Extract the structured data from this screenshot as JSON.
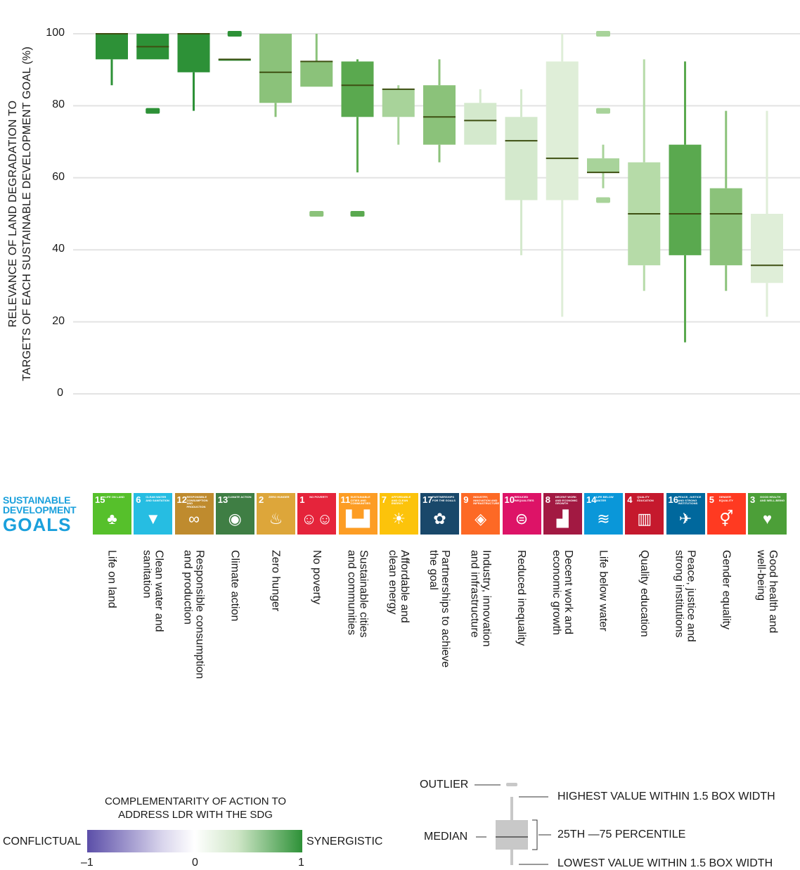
{
  "chart_data": {
    "type": "box",
    "ylabel_line1": "RELEVANCE OF LAND DEGRADATION TO",
    "ylabel_line2": "TARGETS OF EACH SUSTAINABLE DEVELOPMENT GOAL (%)",
    "ylim": [
      0,
      100
    ],
    "yticks": [
      0,
      20,
      40,
      60,
      80,
      100
    ],
    "grid": true,
    "categories": [
      {
        "name": "Life on land",
        "goal": 15,
        "color": "#2d9137",
        "q1": 92.9,
        "median": 100,
        "q3": 100,
        "low": 85.7,
        "high": 100,
        "outliers": []
      },
      {
        "name": "Clean water and sanitation",
        "goal": 6,
        "color": "#2d9137",
        "q1": 92.9,
        "median": 96.4,
        "q3": 100,
        "low": 92.9,
        "high": 100,
        "outliers": [
          78.6
        ]
      },
      {
        "name": "Responsible consumption and production",
        "goal": 12,
        "color": "#2d9137",
        "q1": 89.3,
        "median": 100,
        "q3": 100,
        "low": 78.6,
        "high": 100,
        "outliers": []
      },
      {
        "name": "Climate action",
        "goal": 13,
        "color": "#2d9137",
        "q1": 92.9,
        "median": 92.9,
        "q3": 92.9,
        "low": 92.9,
        "high": 92.9,
        "outliers": [
          100
        ]
      },
      {
        "name": "Zero hunger",
        "goal": 2,
        "color": "#8bc27a",
        "q1": 80.8,
        "median": 89.3,
        "q3": 100,
        "low": 76.9,
        "high": 100,
        "outliers": []
      },
      {
        "name": "No poverty",
        "goal": 1,
        "color": "#8bc27a",
        "q1": 85.3,
        "median": 92.3,
        "q3": 92.3,
        "low": 85.3,
        "high": 100,
        "outliers": [
          50
        ]
      },
      {
        "name": "Sustainable cities and communities",
        "goal": 11,
        "color": "#5aa94f",
        "q1": 76.9,
        "median": 85.7,
        "q3": 92.3,
        "low": 61.5,
        "high": 92.9,
        "outliers": [
          50
        ]
      },
      {
        "name": "Affordable and clean energy",
        "goal": 7,
        "color": "#a8d39a",
        "q1": 76.9,
        "median": 84.6,
        "q3": 84.6,
        "low": 69.2,
        "high": 85.7,
        "outliers": []
      },
      {
        "name": "Partnerships to achieve the goal",
        "goal": 17,
        "color": "#8bc27a",
        "q1": 69.2,
        "median": 76.9,
        "q3": 85.7,
        "low": 64.3,
        "high": 92.9,
        "outliers": []
      },
      {
        "name": "Industry, innovation and infrastructure",
        "goal": 9,
        "color": "#d4e9cd",
        "q1": 69.2,
        "median": 75.9,
        "q3": 80.8,
        "low": 69.2,
        "high": 84.6,
        "outliers": []
      },
      {
        "name": "Reduced inequality",
        "goal": 10,
        "color": "#d4e9cd",
        "q1": 53.8,
        "median": 70.3,
        "q3": 76.9,
        "low": 38.5,
        "high": 84.6,
        "outliers": []
      },
      {
        "name": "Decent work and economic growth",
        "goal": 8,
        "color": "#dfeed8",
        "q1": 53.8,
        "median": 65.4,
        "q3": 92.3,
        "low": 21.4,
        "high": 100,
        "outliers": []
      },
      {
        "name": "Life below water",
        "goal": 14,
        "color": "#a8d39a",
        "q1": 61.5,
        "median": 61.5,
        "q3": 65.4,
        "low": 57.1,
        "high": 69.2,
        "outliers": [
          53.8,
          78.6,
          100
        ]
      },
      {
        "name": "Quality education",
        "goal": 4,
        "color": "#b6dba8",
        "q1": 35.7,
        "median": 50,
        "q3": 64.3,
        "low": 28.6,
        "high": 92.9,
        "outliers": []
      },
      {
        "name": "Peace, justice and strong institutions",
        "goal": 16,
        "color": "#5aa94f",
        "q1": 38.5,
        "median": 50,
        "q3": 69.2,
        "low": 14.3,
        "high": 92.3,
        "outliers": []
      },
      {
        "name": "Gender equality",
        "goal": 5,
        "color": "#8bc27a",
        "q1": 35.7,
        "median": 50,
        "q3": 57.1,
        "low": 28.6,
        "high": 78.6,
        "outliers": []
      },
      {
        "name": "Good health and well-being",
        "goal": 3,
        "color": "#dfeed8",
        "q1": 30.8,
        "median": 35.7,
        "q3": 50,
        "low": 21.4,
        "high": 78.6,
        "outliers": []
      }
    ]
  },
  "sdg_logo": {
    "line1": "SUSTAINABLE",
    "line2": "DEVELOPMENT",
    "line3": "GOALS"
  },
  "tiles": [
    {
      "num": "15",
      "title": "Life on land",
      "glyph": "♣",
      "color": "#56c02b"
    },
    {
      "num": "6",
      "title": "Clean water and sanitation",
      "glyph": "▼",
      "color": "#26bde2"
    },
    {
      "num": "12",
      "title": "Responsible consumption and production",
      "glyph": "∞",
      "color": "#bf8b2e"
    },
    {
      "num": "13",
      "title": "Climate action",
      "glyph": "◉",
      "color": "#3f7e44"
    },
    {
      "num": "2",
      "title": "Zero hunger",
      "glyph": "♨",
      "color": "#dda63a"
    },
    {
      "num": "1",
      "title": "No poverty",
      "glyph": "☺☺☺",
      "color": "#e5243b"
    },
    {
      "num": "11",
      "title": "Sustainable cities and communities",
      "glyph": "▙▟",
      "color": "#fd9d24"
    },
    {
      "num": "7",
      "title": "Affordable and clean energy",
      "glyph": "☀",
      "color": "#fcc30b"
    },
    {
      "num": "17",
      "title": "Partnerships for the goals",
      "glyph": "✿",
      "color": "#19486a"
    },
    {
      "num": "9",
      "title": "Industry, innovation and infrastructure",
      "glyph": "◈",
      "color": "#fd6925"
    },
    {
      "num": "10",
      "title": "Reduced inequalities",
      "glyph": "⊜",
      "color": "#dd1367"
    },
    {
      "num": "8",
      "title": "Decent work and economic growth",
      "glyph": "▟",
      "color": "#a21942"
    },
    {
      "num": "14",
      "title": "Life below water",
      "glyph": "≋",
      "color": "#0a97d9"
    },
    {
      "num": "4",
      "title": "Quality education",
      "glyph": "▥",
      "color": "#c5192d"
    },
    {
      "num": "16",
      "title": "Peace, justice and strong institutions",
      "glyph": "✈",
      "color": "#00689d"
    },
    {
      "num": "5",
      "title": "Gender equality",
      "glyph": "⚥",
      "color": "#ff3a21"
    },
    {
      "num": "3",
      "title": "Good health and well-being",
      "glyph": "♥",
      "color": "#4c9f38"
    }
  ],
  "goal_labels": [
    "Life on land",
    "Clean water and\nsanitation",
    "Responsible consumption\nand production",
    "Climate action",
    "Zero hunger",
    "No poverty",
    "Sustainable cities\nand communities",
    "Affordable and\nclean energy",
    "Partnerships to achieve\nthe goal",
    "Industry, innovation\nand infrastructure",
    "Reduced inequality",
    "Decent work and\neconomic growth",
    "Life below water",
    "Quality education",
    "Peace, justice and\nstrong institutions",
    "Gender equality",
    "Good health and\nwell-being"
  ],
  "legend": {
    "title": "COMPLEMENTARITY OF ACTION TO ADDRESS LDR WITH THE SDG",
    "left_label": "CONFLICTUAL",
    "right_label": "SYNERGISTIC",
    "scale_min": "–1",
    "scale_mid": "0",
    "scale_max": "1",
    "colors": {
      "conflictual": "#5b4ea8",
      "neutral": "#ffffff",
      "synergistic": "#2d9137"
    }
  },
  "box_key": {
    "outlier": "OUTLIER",
    "highest": "HIGHEST VALUE WITHIN 1.5 BOX WIDTH",
    "median": "MEDIAN",
    "percentile": "25TH —75 PERCENTILE",
    "lowest": "LOWEST VALUE WITHIN 1.5 BOX WIDTH"
  }
}
